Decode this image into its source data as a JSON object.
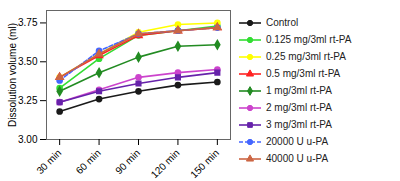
{
  "chart_data": {
    "type": "line",
    "x": [
      30,
      60,
      90,
      120,
      150
    ],
    "series": [
      {
        "name": "Control",
        "color": "#1a1a1a",
        "marker": "circle",
        "line_style": "solid",
        "values": [
          3.18,
          3.26,
          3.31,
          3.35,
          3.37
        ]
      },
      {
        "name": "0.125 mg/3ml rt-PA",
        "color": "#33dd33",
        "marker": "circle",
        "line_style": "solid",
        "values": [
          3.33,
          3.52,
          3.67,
          3.7,
          3.73
        ]
      },
      {
        "name": "0.25 mg/3ml rt-PA",
        "color": "#ffff00",
        "marker": "circle",
        "line_style": "solid",
        "values": [
          3.4,
          3.55,
          3.69,
          3.74,
          3.75
        ]
      },
      {
        "name": "0.5 mg/3ml rt-PA",
        "color": "#ff2222",
        "marker": "triangle",
        "line_style": "solid",
        "values": [
          3.4,
          3.54,
          3.67,
          3.7,
          3.72
        ]
      },
      {
        "name": "1 mg/3ml rt-PA",
        "color": "#228B22",
        "marker": "diamond",
        "line_style": "solid",
        "values": [
          3.31,
          3.43,
          3.53,
          3.6,
          3.61
        ]
      },
      {
        "name": "2 mg/3ml rt-PA",
        "color": "#cc44cc",
        "marker": "circle",
        "line_style": "solid",
        "values": [
          3.24,
          3.32,
          3.4,
          3.43,
          3.45
        ]
      },
      {
        "name": "3 mg/3ml rt-PA",
        "color": "#6622aa",
        "marker": "square",
        "line_style": "solid",
        "values": [
          3.24,
          3.31,
          3.36,
          3.4,
          3.43
        ]
      },
      {
        "name": "20000 U u-PA",
        "color": "#4466ff",
        "marker": "circle",
        "line_style": "dashed",
        "values": [
          3.38,
          3.57,
          3.68,
          3.7,
          3.72
        ]
      },
      {
        "name": "40000 U u-PA",
        "color": "#cc6644",
        "marker": "triangle",
        "line_style": "solid",
        "values": [
          3.4,
          3.55,
          3.68,
          3.7,
          3.72
        ]
      }
    ],
    "ylabel": "Dissolution volume (ml)",
    "xlim": [
      20,
      160
    ],
    "xticks": [
      {
        "value": 30,
        "label": "30 min"
      },
      {
        "value": 60,
        "label": "60 min"
      },
      {
        "value": 90,
        "label": "90 min"
      },
      {
        "value": 120,
        "label": "120 min"
      },
      {
        "value": 150,
        "label": "150 min"
      }
    ],
    "ylim": [
      3.0,
      3.83
    ],
    "yticks": [
      {
        "value": 3.0,
        "label": "3.00"
      },
      3.25,
      {
        "value": 3.5,
        "label": "3.50"
      },
      3.75
    ],
    "grid": false,
    "legend": "right"
  }
}
